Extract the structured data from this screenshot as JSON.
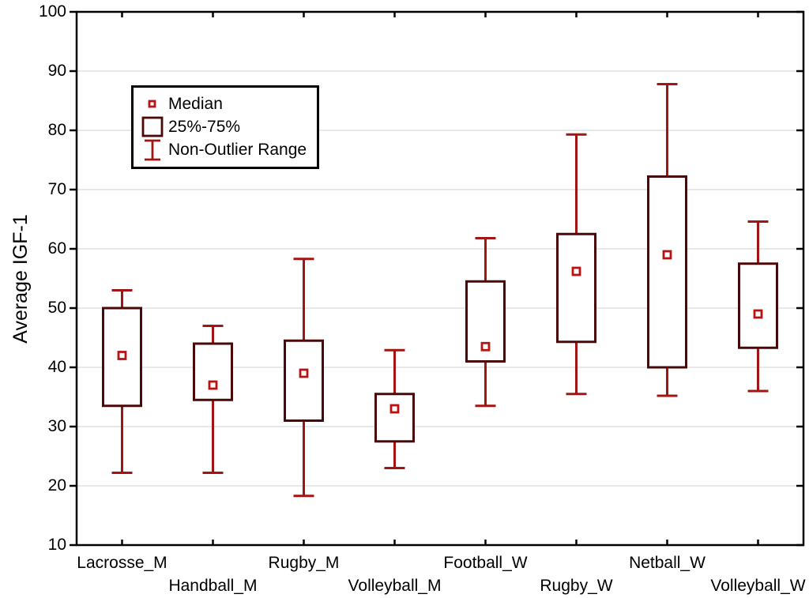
{
  "chart_data": {
    "type": "box",
    "title": "",
    "ylabel": "Average IGF-1",
    "xlabel": "",
    "ylim": [
      10,
      100
    ],
    "yticks": [
      10,
      20,
      30,
      40,
      50,
      60,
      70,
      80,
      90,
      100
    ],
    "grid": "horizontal-light-gray",
    "legend_position": "upper-left-inside",
    "legend": [
      "Median",
      "25%-75%",
      "Non-Outlier Range"
    ],
    "categories": [
      "Lacrosse_M",
      "Handball_M",
      "Rugby_M",
      "Volleyball_M",
      "Football_W",
      "Rugby_W",
      "Netball_W",
      "Volleyball_W"
    ],
    "series": [
      {
        "name": "Lacrosse_M",
        "median": 42,
        "q1": 33.5,
        "q3": 50,
        "whisker_low": 22.2,
        "whisker_high": 53
      },
      {
        "name": "Handball_M",
        "median": 37,
        "q1": 34.5,
        "q3": 44,
        "whisker_low": 22.2,
        "whisker_high": 47
      },
      {
        "name": "Rugby_M",
        "median": 39,
        "q1": 31,
        "q3": 44.5,
        "whisker_low": 18.3,
        "whisker_high": 58.3
      },
      {
        "name": "Volleyball_M",
        "median": 33,
        "q1": 27.5,
        "q3": 35.5,
        "whisker_low": 23,
        "whisker_high": 42.9
      },
      {
        "name": "Football_W",
        "median": 43.5,
        "q1": 41,
        "q3": 54.5,
        "whisker_low": 33.5,
        "whisker_high": 61.8
      },
      {
        "name": "Rugby_W",
        "median": 56.2,
        "q1": 44.3,
        "q3": 62.5,
        "whisker_low": 35.5,
        "whisker_high": 79.3
      },
      {
        "name": "Netball_W",
        "median": 59,
        "q1": 40,
        "q3": 72.2,
        "whisker_low": 35.2,
        "whisker_high": 87.8
      },
      {
        "name": "Volleyball_W",
        "median": 49,
        "q1": 43.3,
        "q3": 57.5,
        "whisker_low": 36,
        "whisker_high": 64.6
      }
    ],
    "colors": {
      "box_border": "#4b0808",
      "whisker": "#a31515",
      "median": "#b91212",
      "grid": "#e0e0e0",
      "frame": "#000000",
      "background": "#ffffff"
    }
  }
}
